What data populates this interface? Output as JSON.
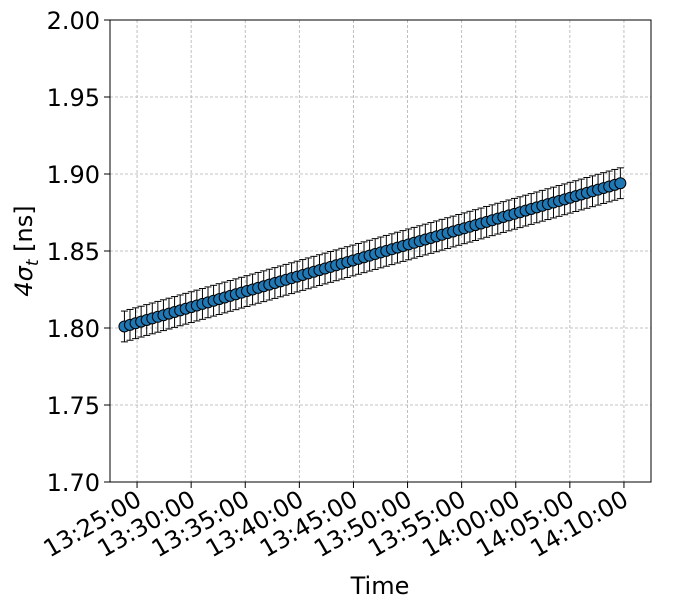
{
  "chart_data": {
    "type": "scatter",
    "xlabel": "Time",
    "ylabel": "4σ_t [ns]",
    "ylim": [
      1.7,
      2.0
    ],
    "xlim": [
      "13:22:30",
      "14:12:30"
    ],
    "x_ticks": [
      "13:25:00",
      "13:30:00",
      "13:35:00",
      "13:40:00",
      "13:45:00",
      "13:50:00",
      "13:55:00",
      "14:00:00",
      "14:05:00",
      "14:10:00"
    ],
    "y_ticks": [
      "1.70",
      "1.75",
      "1.80",
      "1.85",
      "1.90",
      "1.95",
      "2.00"
    ],
    "grid": true,
    "marker_color": "#1f77b4",
    "series": [
      {
        "x_start": "13:23:50",
        "x_end": "14:09:40",
        "y_start": 1.801,
        "y_end": 1.894,
        "n_points": 90,
        "error": 0.01
      }
    ]
  }
}
